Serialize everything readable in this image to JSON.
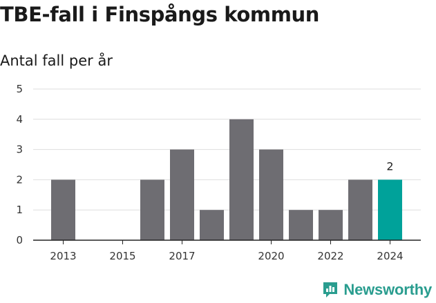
{
  "title": "TBE-fall i Finspångs kommun",
  "subtitle": "Antal fall per år",
  "brand": {
    "name": "Newsworthy",
    "icon": "newsworthy-logo-icon",
    "color": "#2a9d8f"
  },
  "chart_data": {
    "type": "bar",
    "categories": [
      "2013",
      "2014",
      "2015",
      "2016",
      "2017",
      "2018",
      "2019",
      "2020",
      "2021",
      "2022",
      "2023",
      "2024"
    ],
    "x_tick_labels": [
      "2013",
      "",
      "2015",
      "",
      "2017",
      "",
      "",
      "2020",
      "",
      "2022",
      "",
      "2024"
    ],
    "values": [
      2,
      0,
      0,
      2,
      3,
      1,
      4,
      3,
      1,
      1,
      2,
      2
    ],
    "ylim": [
      0,
      5
    ],
    "y_ticks": [
      0,
      1,
      2,
      3,
      4,
      5
    ],
    "grid": true,
    "bar_color": "#6e6d72",
    "highlight_color": "#00a29a",
    "highlight_index": 11,
    "data_labels": [
      {
        "index": 11,
        "text": "2"
      }
    ]
  }
}
